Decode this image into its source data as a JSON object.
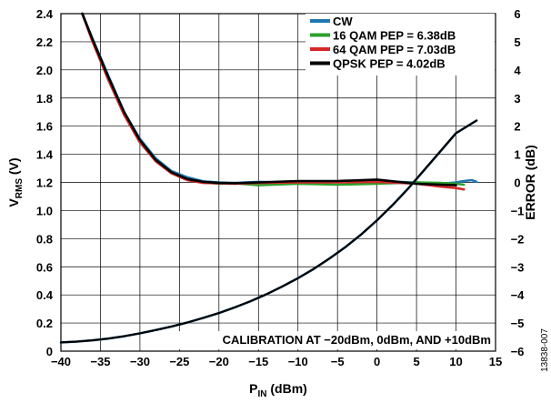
{
  "chart_data": {
    "type": "line",
    "xlabel": {
      "base": "P",
      "sub": "IN",
      "unit": " (dBm)"
    },
    "ylabel_left": {
      "base": "V",
      "sub": "RMS",
      "unit": " (V)"
    },
    "ylabel_right": "ERROR (dB)",
    "xlim": [
      -40,
      15
    ],
    "ylim_left": [
      0,
      2.4
    ],
    "ylim_right": [
      -6,
      6
    ],
    "x_ticks": [
      "−40",
      "−35",
      "−30",
      "−25",
      "−20",
      "−15",
      "−10",
      "−5",
      "0",
      "5",
      "10",
      "15"
    ],
    "y_ticks_left": [
      "0",
      "0.2",
      "0.4",
      "0.6",
      "0.8",
      "1.0",
      "1.2",
      "1.4",
      "1.6",
      "1.8",
      "2.0",
      "2.2",
      "2.4"
    ],
    "y_ticks_right": [
      "−6",
      "−5",
      "−4",
      "−3",
      "−2",
      "−1",
      "0",
      "1",
      "2",
      "3",
      "4",
      "5",
      "6"
    ],
    "grid": true,
    "legend_position": "top-right",
    "annotation": "CALIBRATION AT −20dBm, 0dBm, AND +10dBm",
    "figure_id": "13838-007",
    "vrms_series": {
      "axis": "left",
      "color": "#1f77b4",
      "x": [
        -40,
        -38,
        -36,
        -34,
        -32,
        -30,
        -28,
        -26,
        -24,
        -22,
        -20,
        -18,
        -16,
        -14,
        -12,
        -10,
        -8,
        -6,
        -4,
        -2,
        0,
        2,
        4,
        6,
        8,
        10,
        12.6
      ],
      "values": [
        0.062,
        0.068,
        0.077,
        0.089,
        0.106,
        0.127,
        0.15,
        0.175,
        0.204,
        0.236,
        0.271,
        0.311,
        0.355,
        0.404,
        0.459,
        0.519,
        0.585,
        0.659,
        0.74,
        0.83,
        0.93,
        1.04,
        1.16,
        1.29,
        1.42,
        1.55,
        1.64
      ]
    },
    "error_series": [
      {
        "name": "CW",
        "color": "#1f77b4",
        "x": [
          -37.3,
          -36,
          -34,
          -32,
          -30,
          -28,
          -26,
          -24,
          -22,
          -20,
          -18,
          -15,
          -10,
          -5,
          0,
          5,
          8,
          10,
          11,
          12,
          12.6
        ],
        "values": [
          6,
          5.1,
          3.8,
          2.5,
          1.55,
          0.85,
          0.4,
          0.18,
          0.04,
          0,
          -0.02,
          0.02,
          -0.01,
          0.03,
          0.04,
          0,
          -0.05,
          0,
          0.05,
          0.08,
          0.02
        ]
      },
      {
        "name": "16 QAM PEP = 6.38dB",
        "color": "#2ca02c",
        "x": [
          -37.3,
          -36,
          -34,
          -32,
          -30,
          -28,
          -26,
          -24,
          -22,
          -20,
          -18,
          -15,
          -10,
          -5,
          0,
          5,
          8,
          10,
          11
        ],
        "values": [
          6,
          5.05,
          3.7,
          2.45,
          1.45,
          0.78,
          0.34,
          0.1,
          0,
          -0.05,
          -0.03,
          -0.1,
          -0.05,
          -0.08,
          -0.05,
          0,
          -0.02,
          -0.05,
          -0.08
        ]
      },
      {
        "name": "64 QAM PEP = 7.03dB",
        "color": "#d62728",
        "x": [
          -37.3,
          -36,
          -34,
          -32,
          -30,
          -28,
          -26,
          -24,
          -22,
          -20,
          -18,
          -15,
          -10,
          -5,
          0,
          5,
          8,
          10,
          11
        ],
        "values": [
          6,
          5.0,
          3.65,
          2.4,
          1.42,
          0.75,
          0.32,
          0.08,
          -0.02,
          -0.03,
          -0.05,
          -0.02,
          0,
          0,
          0.02,
          -0.05,
          -0.15,
          -0.2,
          -0.25
        ]
      },
      {
        "name": "QPSK PEP = 4.02dB",
        "color": "#000000",
        "x": [
          -37.3,
          -36,
          -34,
          -32,
          -30,
          -28,
          -26,
          -24,
          -22,
          -20,
          -18,
          -15,
          -10,
          -5,
          0,
          5,
          8,
          10
        ],
        "values": [
          6,
          5.08,
          3.75,
          2.5,
          1.5,
          0.8,
          0.36,
          0.12,
          0.02,
          -0.02,
          -0.03,
          0,
          0.05,
          0.05,
          0.1,
          -0.05,
          -0.08,
          -0.1
        ]
      }
    ]
  }
}
